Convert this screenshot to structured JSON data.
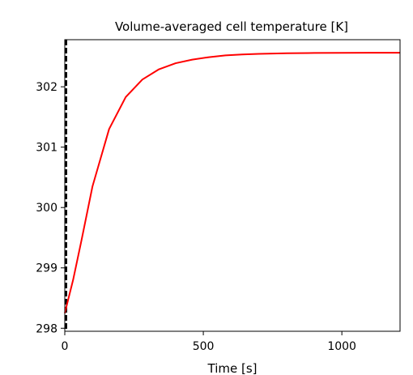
{
  "chart_data": {
    "type": "line",
    "title": "Volume-averaged cell temperature [K]",
    "xlabel": "Time [s]",
    "ylabel": "",
    "xlim": [
      0,
      1210
    ],
    "ylim": [
      297.95,
      302.78
    ],
    "xticks": [
      0,
      500,
      1000
    ],
    "yticks": [
      298,
      299,
      300,
      301,
      302
    ],
    "grid": false,
    "series": [
      {
        "color": "#ff0000",
        "x": [
          0,
          30,
          60,
          100,
          160,
          220,
          280,
          340,
          400,
          460,
          520,
          580,
          640,
          700,
          800,
          900,
          1000,
          1100,
          1210
        ],
        "y": [
          298.25,
          298.8,
          299.45,
          300.35,
          301.3,
          301.83,
          302.12,
          302.29,
          302.39,
          302.45,
          302.49,
          302.52,
          302.535,
          302.545,
          302.555,
          302.56,
          302.562,
          302.563,
          302.563
        ]
      }
    ],
    "vline": {
      "x": 5,
      "style": "dashed",
      "color": "#000000"
    }
  }
}
